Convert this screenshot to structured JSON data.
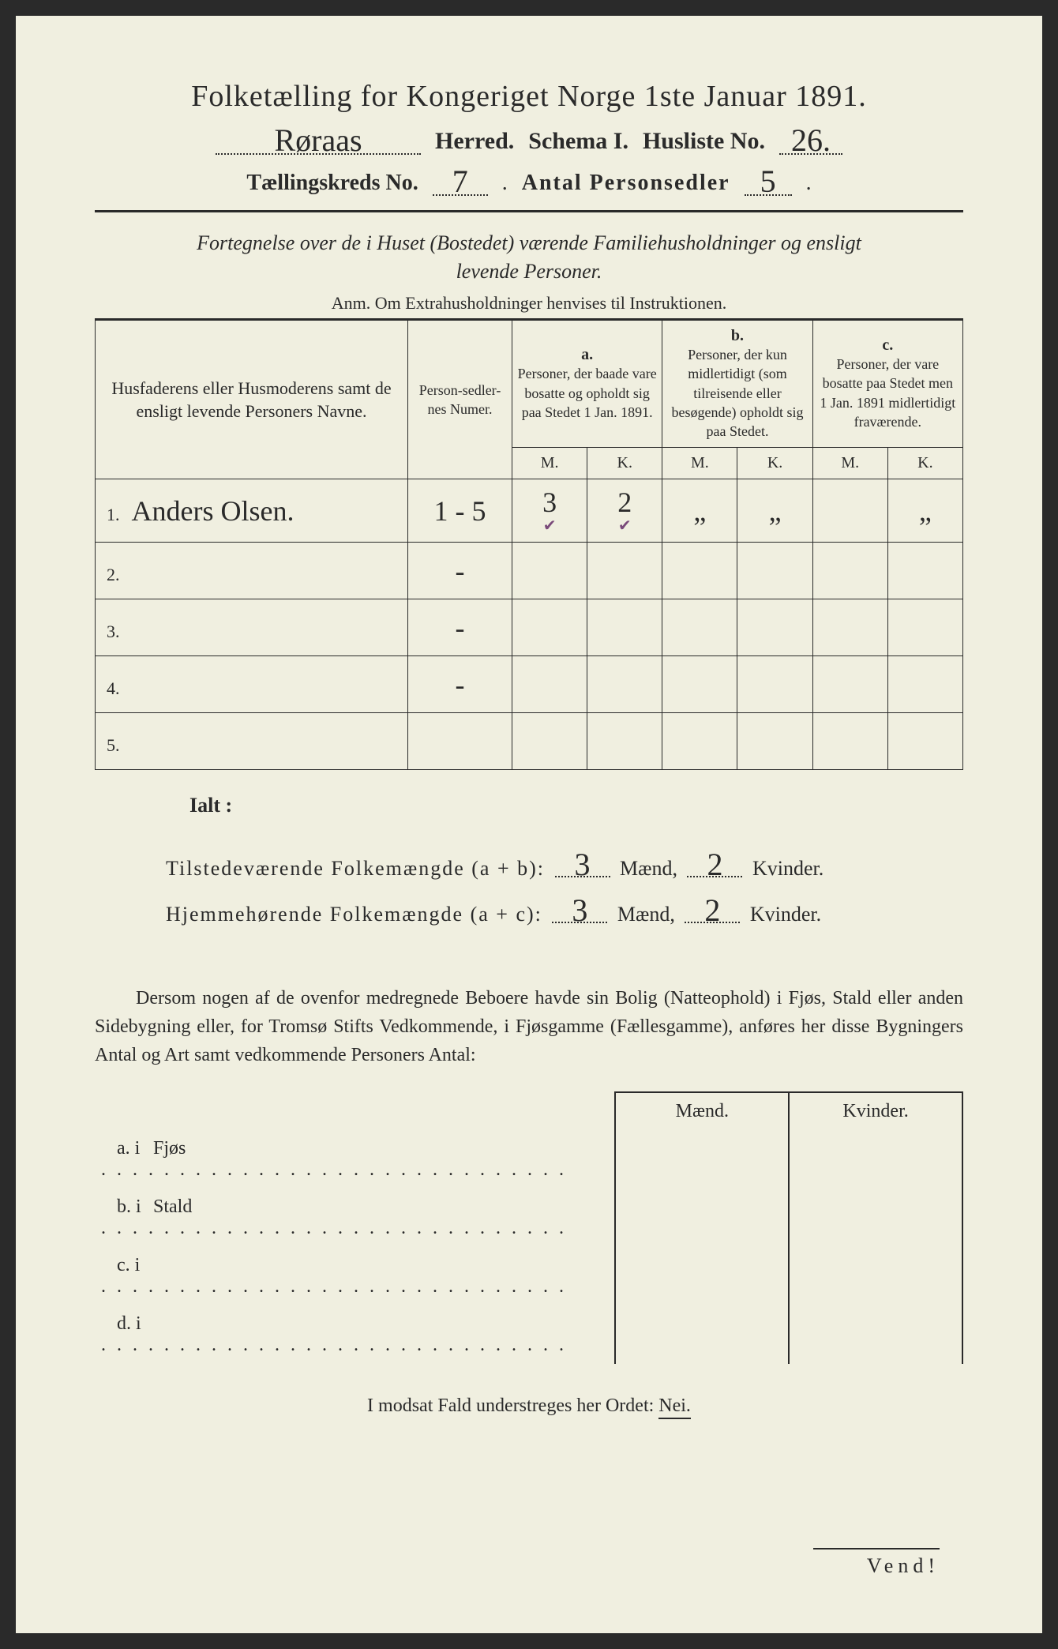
{
  "header": {
    "title": "Folketælling for Kongeriget Norge 1ste Januar 1891.",
    "herred_value": "Røraas",
    "herred_label": "Herred.",
    "schema_label": "Schema I.",
    "husliste_label": "Husliste No.",
    "husliste_value": "26.",
    "kreds_label": "Tællingskreds No.",
    "kreds_value": "7",
    "antal_label": "Antal Personsedler",
    "antal_value": "5"
  },
  "subtitle": {
    "line1": "Fortegnelse over de i Huset (Bostedet) værende Familiehusholdninger og ensligt",
    "line2": "levende Personer.",
    "anm": "Anm. Om Extrahusholdninger henvises til Instruktionen."
  },
  "table": {
    "col_name": "Husfaderens eller Husmoderens samt de ensligt levende Personers Navne.",
    "col_num": "Person-sedler-nes Numer.",
    "col_a_label": "a.",
    "col_a_text": "Personer, der baade vare bosatte og opholdt sig paa Stedet 1 Jan. 1891.",
    "col_b_label": "b.",
    "col_b_text": "Personer, der kun midlertidigt (som tilreisende eller besøgende) opholdt sig paa Stedet.",
    "col_c_label": "c.",
    "col_c_text": "Personer, der vare bosatte paa Stedet men 1 Jan. 1891 midlertidigt fraværende.",
    "m_label": "M.",
    "k_label": "K.",
    "rows": [
      {
        "num": "1.",
        "name": "Anders Olsen.",
        "sedler": "1 - 5",
        "a_m": "3",
        "a_k": "2",
        "b_m": "„",
        "b_k": "„",
        "c_m": "",
        "c_k": "„"
      },
      {
        "num": "2.",
        "name": "",
        "sedler": "-",
        "a_m": "",
        "a_k": "",
        "b_m": "",
        "b_k": "",
        "c_m": "",
        "c_k": ""
      },
      {
        "num": "3.",
        "name": "",
        "sedler": "-",
        "a_m": "",
        "a_k": "",
        "b_m": "",
        "b_k": "",
        "c_m": "",
        "c_k": ""
      },
      {
        "num": "4.",
        "name": "",
        "sedler": "-",
        "a_m": "",
        "a_k": "",
        "b_m": "",
        "b_k": "",
        "c_m": "",
        "c_k": ""
      },
      {
        "num": "5.",
        "name": "",
        "sedler": "",
        "a_m": "",
        "a_k": "",
        "b_m": "",
        "b_k": "",
        "c_m": "",
        "c_k": ""
      }
    ]
  },
  "totals": {
    "ialt": "Ialt :",
    "tilstede_label": "Tilstedeværende Folkemængde (a + b):",
    "hjemme_label": "Hjemmehørende Folkemængde (a + c):",
    "tilstede_m": "3",
    "tilstede_k": "2",
    "hjemme_m": "3",
    "hjemme_k": "2",
    "maend": "Mænd,",
    "kvinder": "Kvinder."
  },
  "paragraph": "Dersom nogen af de ovenfor medregnede Beboere havde sin Bolig (Natteophold) i Fjøs, Stald eller anden Sidebygning eller, for Tromsø Stifts Vedkommende, i Fjøsgamme (Fællesgamme), anføres her disse Bygningers Antal og Art samt vedkommende Personers Antal:",
  "dwelling": {
    "maend": "Mænd.",
    "kvinder": "Kvinder.",
    "rows": [
      {
        "label": "a.  i",
        "type": "Fjøs"
      },
      {
        "label": "b.  i",
        "type": "Stald"
      },
      {
        "label": "c.  i",
        "type": ""
      },
      {
        "label": "d.  i",
        "type": ""
      }
    ]
  },
  "nej_line": "I modsat Fald understreges her Ordet:",
  "nej": "Nei.",
  "vend": "Vend!",
  "colors": {
    "paper": "#f0efe0",
    "ink": "#2a2a2a",
    "tick": "#7a4a7a"
  }
}
